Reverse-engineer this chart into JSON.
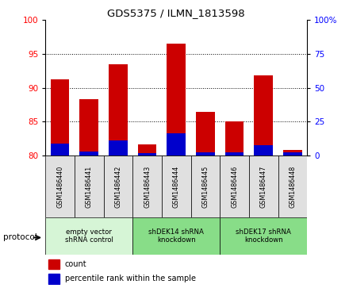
{
  "title": "GDS5375 / ILMN_1813598",
  "samples": [
    "GSM1486440",
    "GSM1486441",
    "GSM1486442",
    "GSM1486443",
    "GSM1486444",
    "GSM1486445",
    "GSM1486446",
    "GSM1486447",
    "GSM1486448"
  ],
  "red_values": [
    91.3,
    88.3,
    93.5,
    81.6,
    96.5,
    86.4,
    85.1,
    91.8,
    80.8
  ],
  "blue_values": [
    81.8,
    80.6,
    82.2,
    80.4,
    83.3,
    80.5,
    80.5,
    81.5,
    80.5
  ],
  "ylim": [
    80,
    100
  ],
  "yticks_left": [
    80,
    85,
    90,
    95,
    100
  ],
  "right_tick_positions": [
    80,
    85,
    90,
    95,
    100
  ],
  "right_tick_labels": [
    "0",
    "25",
    "50",
    "75",
    "100%"
  ],
  "bar_bottom": 80,
  "red_color": "#cc0000",
  "blue_color": "#0000cc",
  "bar_width": 0.65,
  "proto_colors": [
    "#d6f5d6",
    "#88dd88",
    "#88dd88"
  ],
  "proto_ranges": [
    [
      0,
      3
    ],
    [
      3,
      6
    ],
    [
      6,
      9
    ]
  ],
  "proto_labels": [
    "empty vector\nshRNA control",
    "shDEK14 shRNA\nknockdown",
    "shDEK17 shRNA\nknockdown"
  ],
  "sample_box_color": "#e0e0e0",
  "fig_bg": "#ffffff"
}
